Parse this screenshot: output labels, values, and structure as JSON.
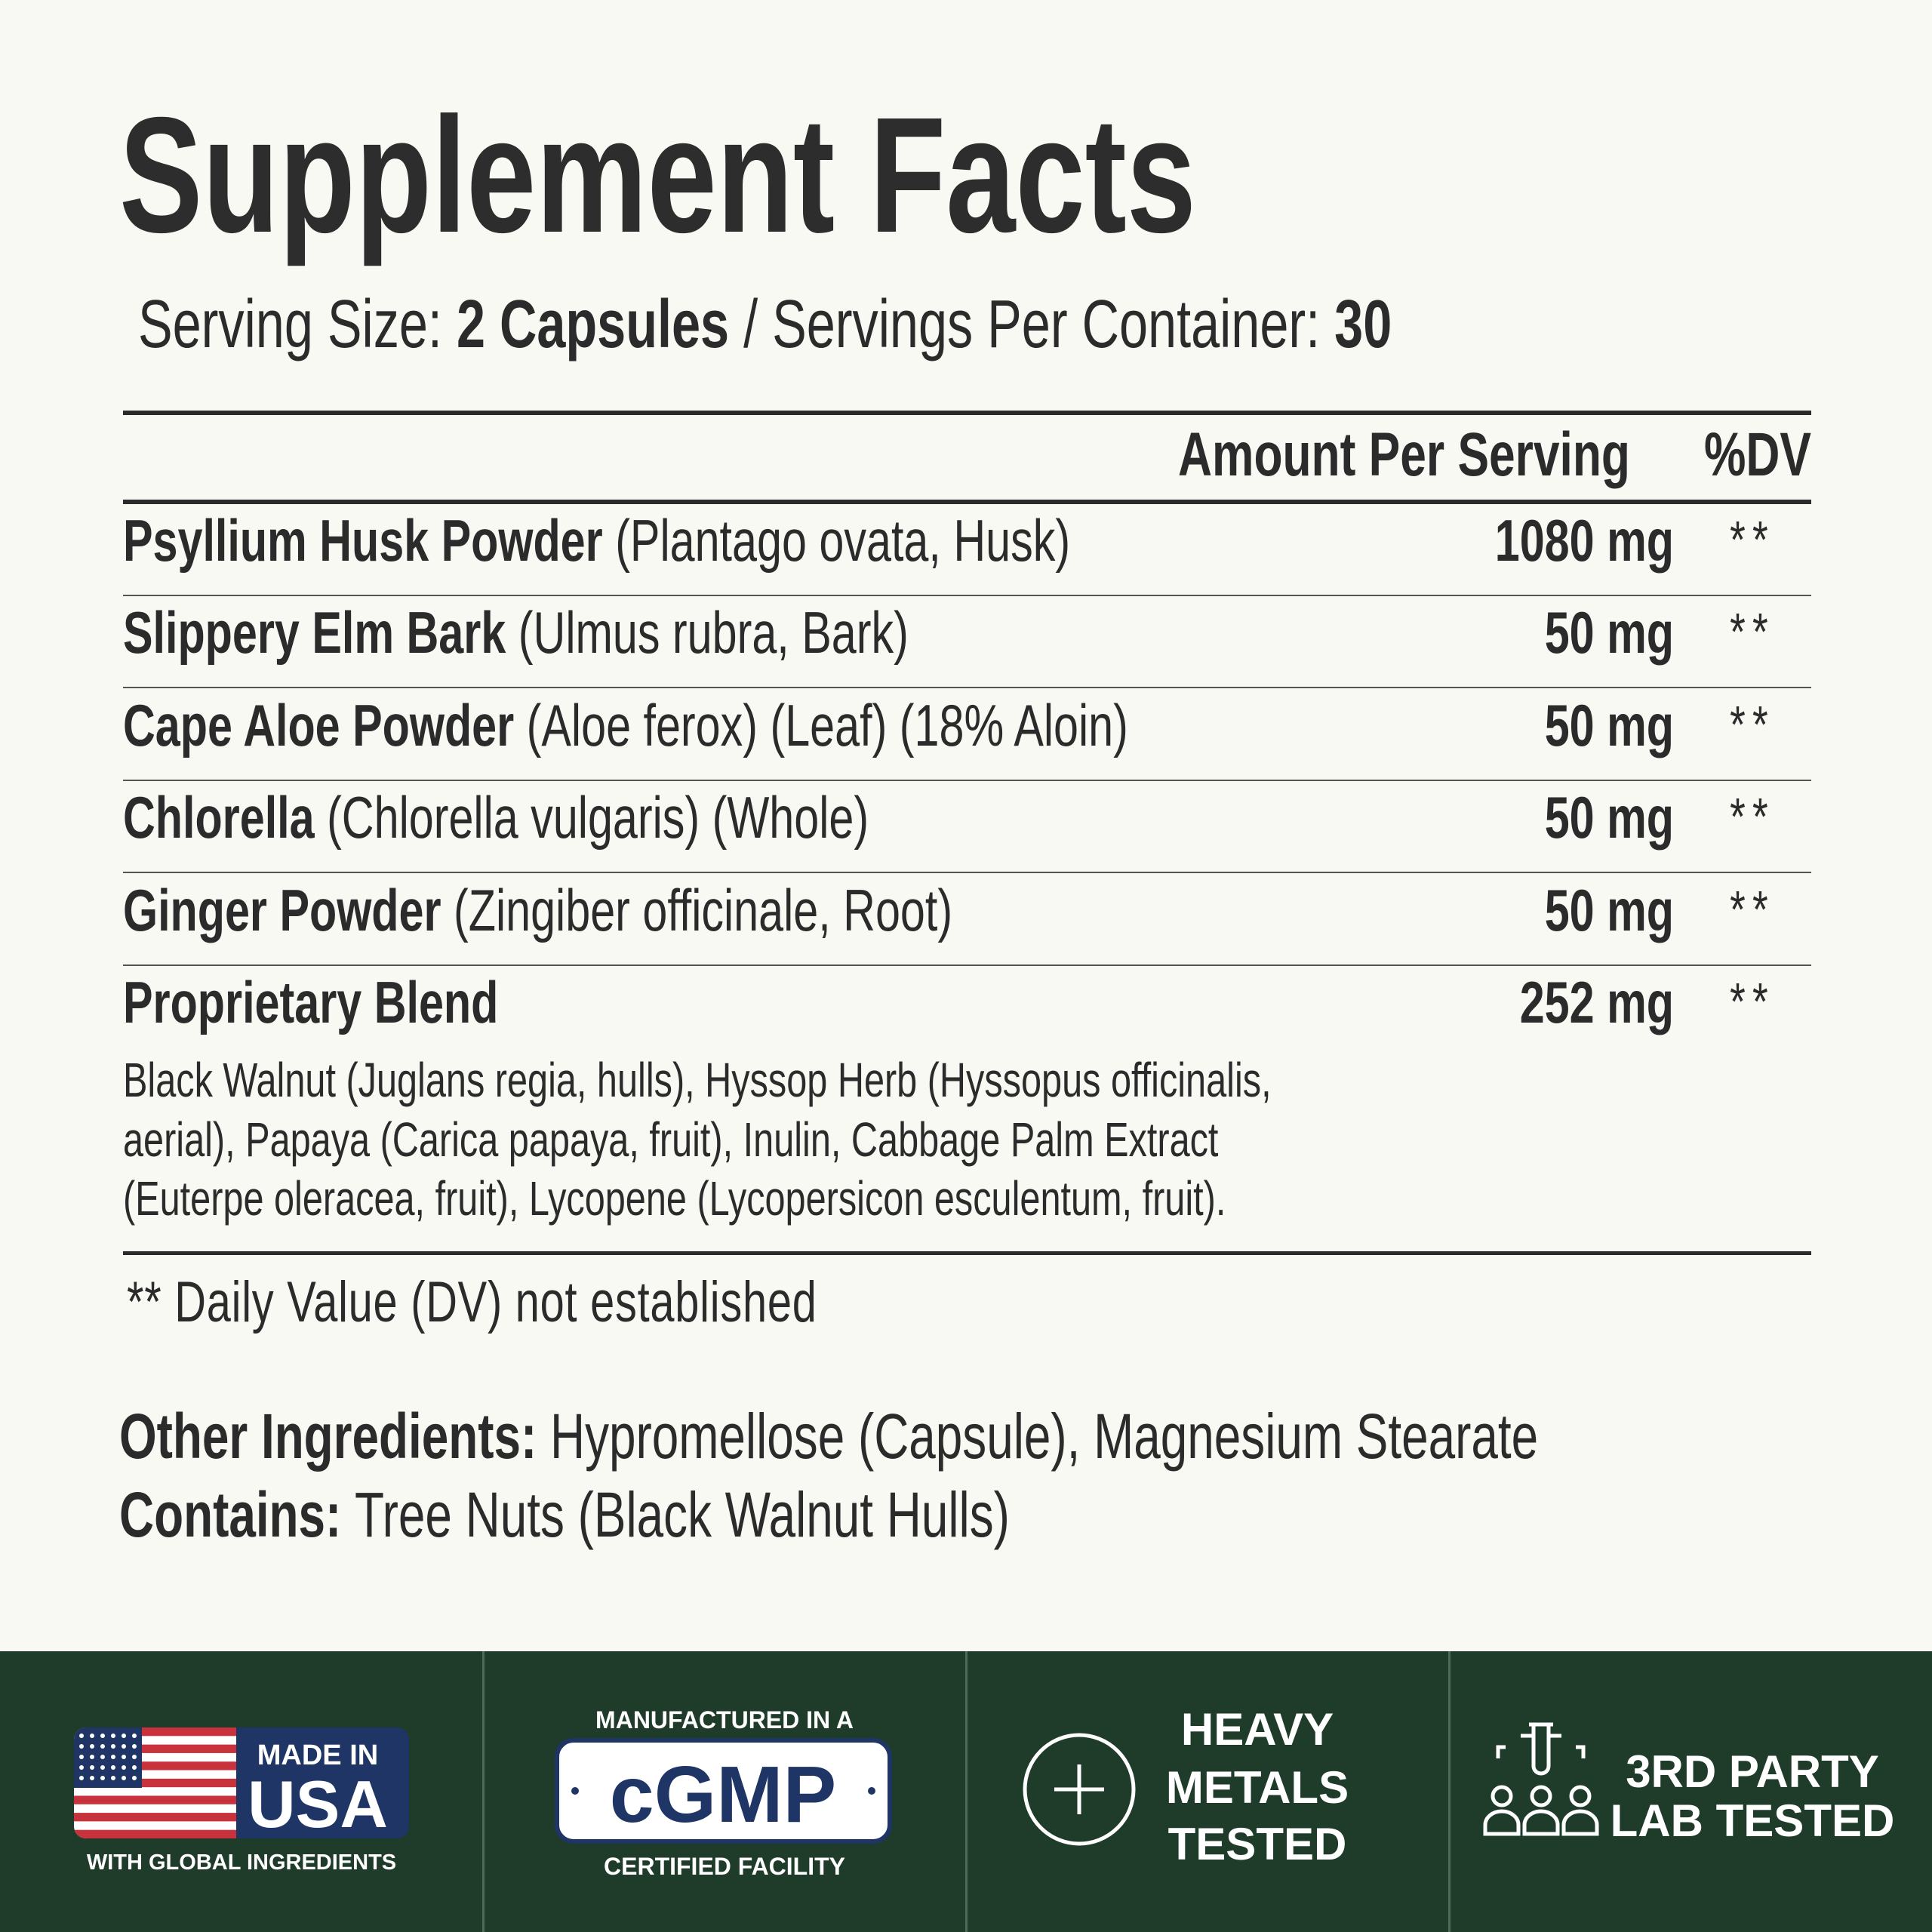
{
  "header": {
    "title": "Supplement Facts",
    "serving_size_label": "Serving Size:",
    "serving_size": "2 Capsules",
    "separator": "/",
    "servings_label": "Servings Per Container:",
    "servings": "30"
  },
  "table": {
    "columns": [
      "Amount Per Serving",
      "%DV"
    ],
    "rows": [
      {
        "name": "Psyllium Husk Powder",
        "detail": "(Plantago ovata, Husk)",
        "amount": "1080 mg",
        "dv": "**"
      },
      {
        "name": "Slippery Elm Bark",
        "detail": "(Ulmus rubra, Bark)",
        "amount": "50 mg",
        "dv": "**"
      },
      {
        "name": "Cape Aloe Powder",
        "detail": "(Aloe ferox) (Leaf) (18% Aloin)",
        "amount": "50 mg",
        "dv": "**"
      },
      {
        "name": "Chlorella",
        "detail": "(Chlorella vulgaris) (Whole)",
        "amount": "50 mg",
        "dv": "**"
      },
      {
        "name": "Ginger Powder",
        "detail": "(Zingiber officinale, Root)",
        "amount": "50 mg",
        "dv": "**"
      }
    ],
    "blend": {
      "name": "Proprietary Blend",
      "amount": "252 mg",
      "dv": "**",
      "ingredients": [
        "Black Walnut (Juglans regia, hulls), Hyssop Herb (Hyssopus officinalis,",
        "aerial), Papaya (Carica papaya, fruit), Inulin, Cabbage Palm Extract",
        "(Euterpe oleracea, fruit), Lycopene (Lycopersicon esculentum, fruit)."
      ]
    }
  },
  "footnote": "** Daily Value (DV) not established",
  "other_ingredients": {
    "label": "Other Ingredients:",
    "text": "Hypromellose (Capsule), Magnesium Stearate"
  },
  "contains": {
    "label": "Contains:",
    "text": "Tree Nuts (Black Walnut Hulls)"
  },
  "badges": [
    {
      "lines": [
        "MADE IN",
        "USA",
        "WITH GLOBAL INGREDIENTS"
      ]
    },
    {
      "lines": [
        "MANUFACTURED IN A",
        "cGMP",
        "CERTIFIED FACILITY"
      ]
    },
    {
      "lines": [
        "HEAVY",
        "METALS",
        "TESTED"
      ]
    },
    {
      "lines": [
        "3RD PARTY",
        "LAB TESTED"
      ]
    }
  ]
}
